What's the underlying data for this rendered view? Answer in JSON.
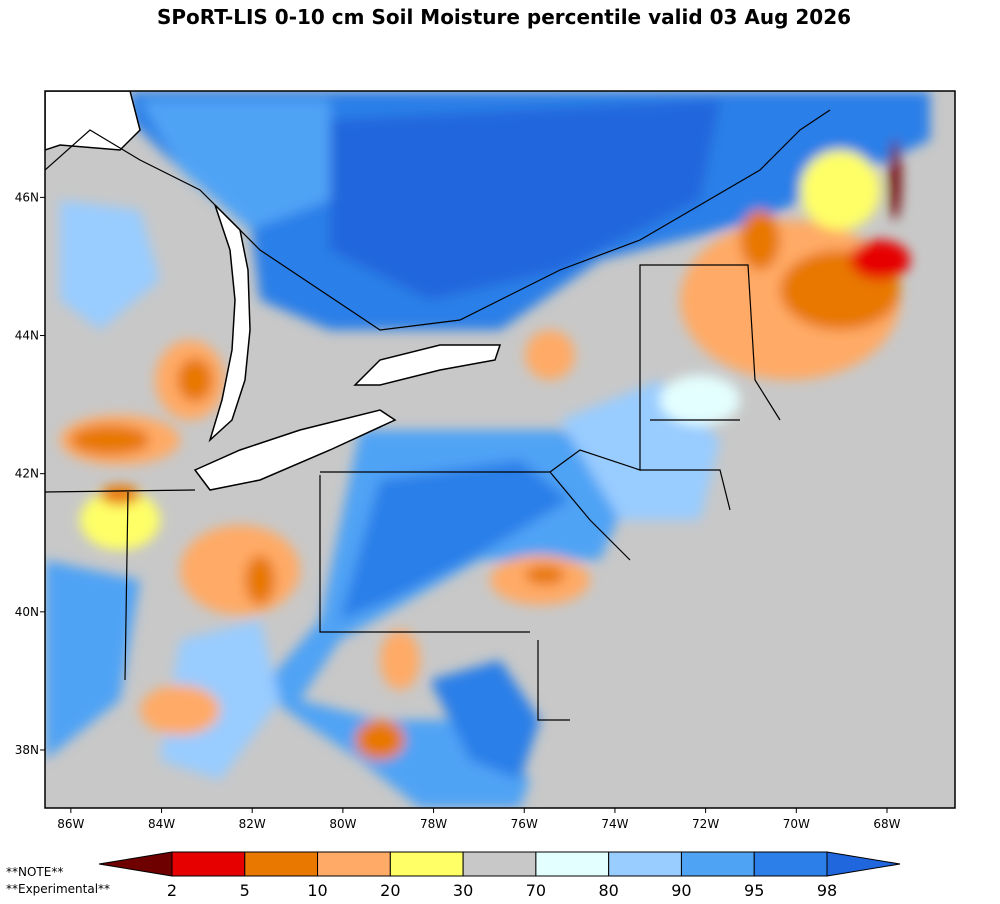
{
  "title": "SPoRT-LIS 0-10 cm Soil Moisture percentile valid 03 Aug 2026",
  "map": {
    "lonlim": [
      -86.57,
      -66.5
    ],
    "latlim": [
      37.16,
      47.54
    ],
    "lon_ticks": [
      {
        "value": -86,
        "label": "86W"
      },
      {
        "value": -84,
        "label": "84W"
      },
      {
        "value": -82,
        "label": "82W"
      },
      {
        "value": -80,
        "label": "80W"
      },
      {
        "value": -78,
        "label": "78W"
      },
      {
        "value": -76,
        "label": "76W"
      },
      {
        "value": -74,
        "label": "74W"
      },
      {
        "value": -72,
        "label": "72W"
      },
      {
        "value": -70,
        "label": "70W"
      },
      {
        "value": -68,
        "label": "68W"
      }
    ],
    "lat_ticks": [
      {
        "value": 38,
        "label": "38N"
      },
      {
        "value": 40,
        "label": "40N"
      },
      {
        "value": 42,
        "label": "42N"
      },
      {
        "value": 44,
        "label": "44N"
      },
      {
        "value": 46,
        "label": "46N"
      }
    ]
  },
  "colorbar": {
    "boundaries": [
      2,
      5,
      10,
      20,
      30,
      70,
      80,
      90,
      95,
      98
    ],
    "colors": [
      "#6e0000",
      "#e60000",
      "#e87800",
      "#ffaa66",
      "#ffff66",
      "#c8c8c8",
      "#e4ffff",
      "#99ccff",
      "#4fa3f5",
      "#2c7fe8",
      "#2066dd"
    ]
  },
  "notes": [
    "**NOTE**",
    "**Experimental**"
  ]
}
